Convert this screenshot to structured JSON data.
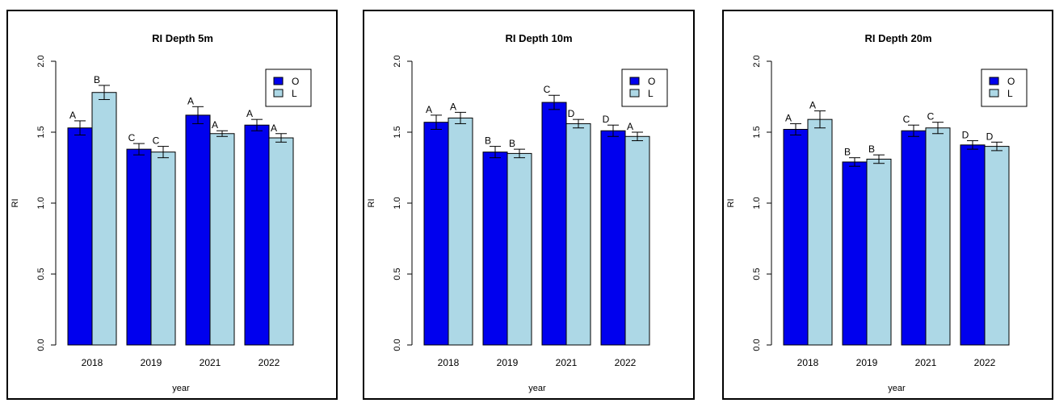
{
  "chart_data": [
    {
      "type": "bar",
      "title": "RI Depth 5m",
      "xlabel": "year",
      "ylabel": "RI",
      "ylim": [
        0,
        2
      ],
      "yticks": [
        "0.0",
        "0.5",
        "1.0",
        "1.5",
        "2.0"
      ],
      "categories": [
        "2018",
        "2019",
        "2021",
        "2022"
      ],
      "series": [
        {
          "name": "O",
          "color": "#0000ee",
          "values": [
            1.53,
            1.38,
            1.62,
            1.55
          ],
          "errors": [
            0.05,
            0.04,
            0.06,
            0.04
          ],
          "letters": [
            "A",
            "C",
            "A",
            "A"
          ]
        },
        {
          "name": "L",
          "color": "#add8e6",
          "values": [
            1.78,
            1.36,
            1.49,
            1.46
          ],
          "errors": [
            0.05,
            0.04,
            0.02,
            0.03
          ],
          "letters": [
            "B",
            "C",
            "A",
            "A"
          ]
        }
      ],
      "legend": "top-right"
    },
    {
      "type": "bar",
      "title": "RI Depth 10m",
      "xlabel": "year",
      "ylabel": "RI",
      "ylim": [
        0,
        2
      ],
      "yticks": [
        "0.0",
        "0.5",
        "1.0",
        "1.5",
        "2.0"
      ],
      "categories": [
        "2018",
        "2019",
        "2021",
        "2022"
      ],
      "series": [
        {
          "name": "O",
          "color": "#0000ee",
          "values": [
            1.57,
            1.36,
            1.71,
            1.51
          ],
          "errors": [
            0.05,
            0.04,
            0.05,
            0.04
          ],
          "letters": [
            "A",
            "B",
            "C",
            "D"
          ]
        },
        {
          "name": "L",
          "color": "#add8e6",
          "values": [
            1.6,
            1.35,
            1.56,
            1.47
          ],
          "errors": [
            0.04,
            0.03,
            0.03,
            0.03
          ],
          "letters": [
            "A",
            "B",
            "D",
            "A"
          ]
        }
      ],
      "legend": "top-right"
    },
    {
      "type": "bar",
      "title": "RI Depth 20m",
      "xlabel": "year",
      "ylabel": "RI",
      "ylim": [
        0,
        2
      ],
      "yticks": [
        "0.0",
        "0.5",
        "1.0",
        "1.5",
        "2.0"
      ],
      "categories": [
        "2018",
        "2019",
        "2021",
        "2022"
      ],
      "series": [
        {
          "name": "O",
          "color": "#0000ee",
          "values": [
            1.52,
            1.29,
            1.51,
            1.41
          ],
          "errors": [
            0.04,
            0.03,
            0.04,
            0.03
          ],
          "letters": [
            "A",
            "B",
            "C",
            "D"
          ]
        },
        {
          "name": "L",
          "color": "#add8e6",
          "values": [
            1.59,
            1.31,
            1.53,
            1.4
          ],
          "errors": [
            0.06,
            0.03,
            0.04,
            0.03
          ],
          "letters": [
            "A",
            "B",
            "C",
            "D"
          ]
        }
      ],
      "legend": "top-right"
    }
  ]
}
